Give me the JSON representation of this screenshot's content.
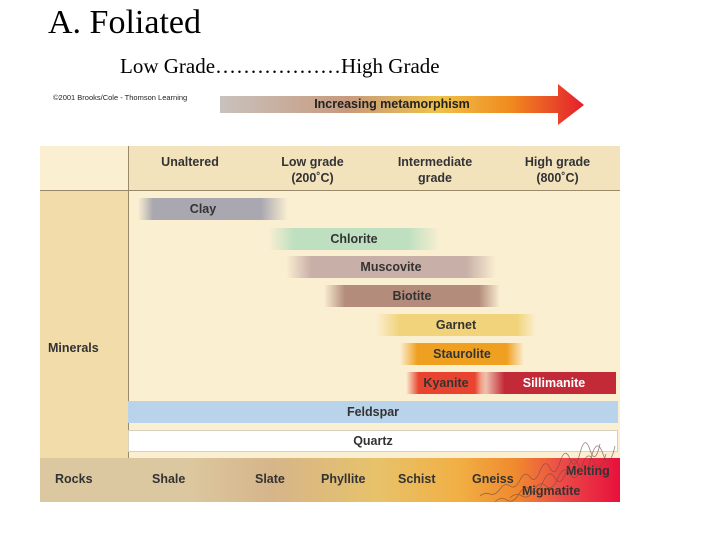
{
  "slide_title": "A.  Foliated",
  "grade_caption": "Low Grade………………High Grade",
  "copyright": "©2001 Brooks/Cole - Thomson Learning",
  "arrow_label": "Increasing metamorphism",
  "columns": {
    "unaltered": "Unaltered",
    "low": "Low grade\n(200˚C)",
    "intermediate": "Intermediate\ngrade",
    "high": "High grade\n(800˚C)"
  },
  "row_labels": {
    "minerals": "Minerals",
    "rocks": "Rocks"
  },
  "minerals": {
    "clay": "Clay",
    "chlorite": "Chlorite",
    "muscovite": "Muscovite",
    "biotite": "Biotite",
    "garnet": "Garnet",
    "staurolite": "Staurolite",
    "kyanite": "Kyanite",
    "sillimanite": "Sillimanite",
    "feldspar": "Feldspar",
    "quartz": "Quartz"
  },
  "rocks": {
    "shale": "Shale",
    "slate": "Slate",
    "phyllite": "Phyllite",
    "schist": "Schist",
    "gneiss": "Gneiss",
    "melting": "Melting",
    "migmatite": "Migmatite"
  },
  "colors": {
    "panel": "#fbefd2",
    "header": "#f3e3bd",
    "side": "#f1dcaa",
    "clay": "#a9a8b0",
    "chlorite": "#bfe0c0",
    "muscovite": "#c8b0a8",
    "biotite": "#b38c7c",
    "garnet": "#f0d37a",
    "staurolite": "#f0a020",
    "kyanite": "#e8442f",
    "sillimanite": "#c22a38",
    "feldspar": "#b9d4ea",
    "quartz": "#ffffff"
  }
}
